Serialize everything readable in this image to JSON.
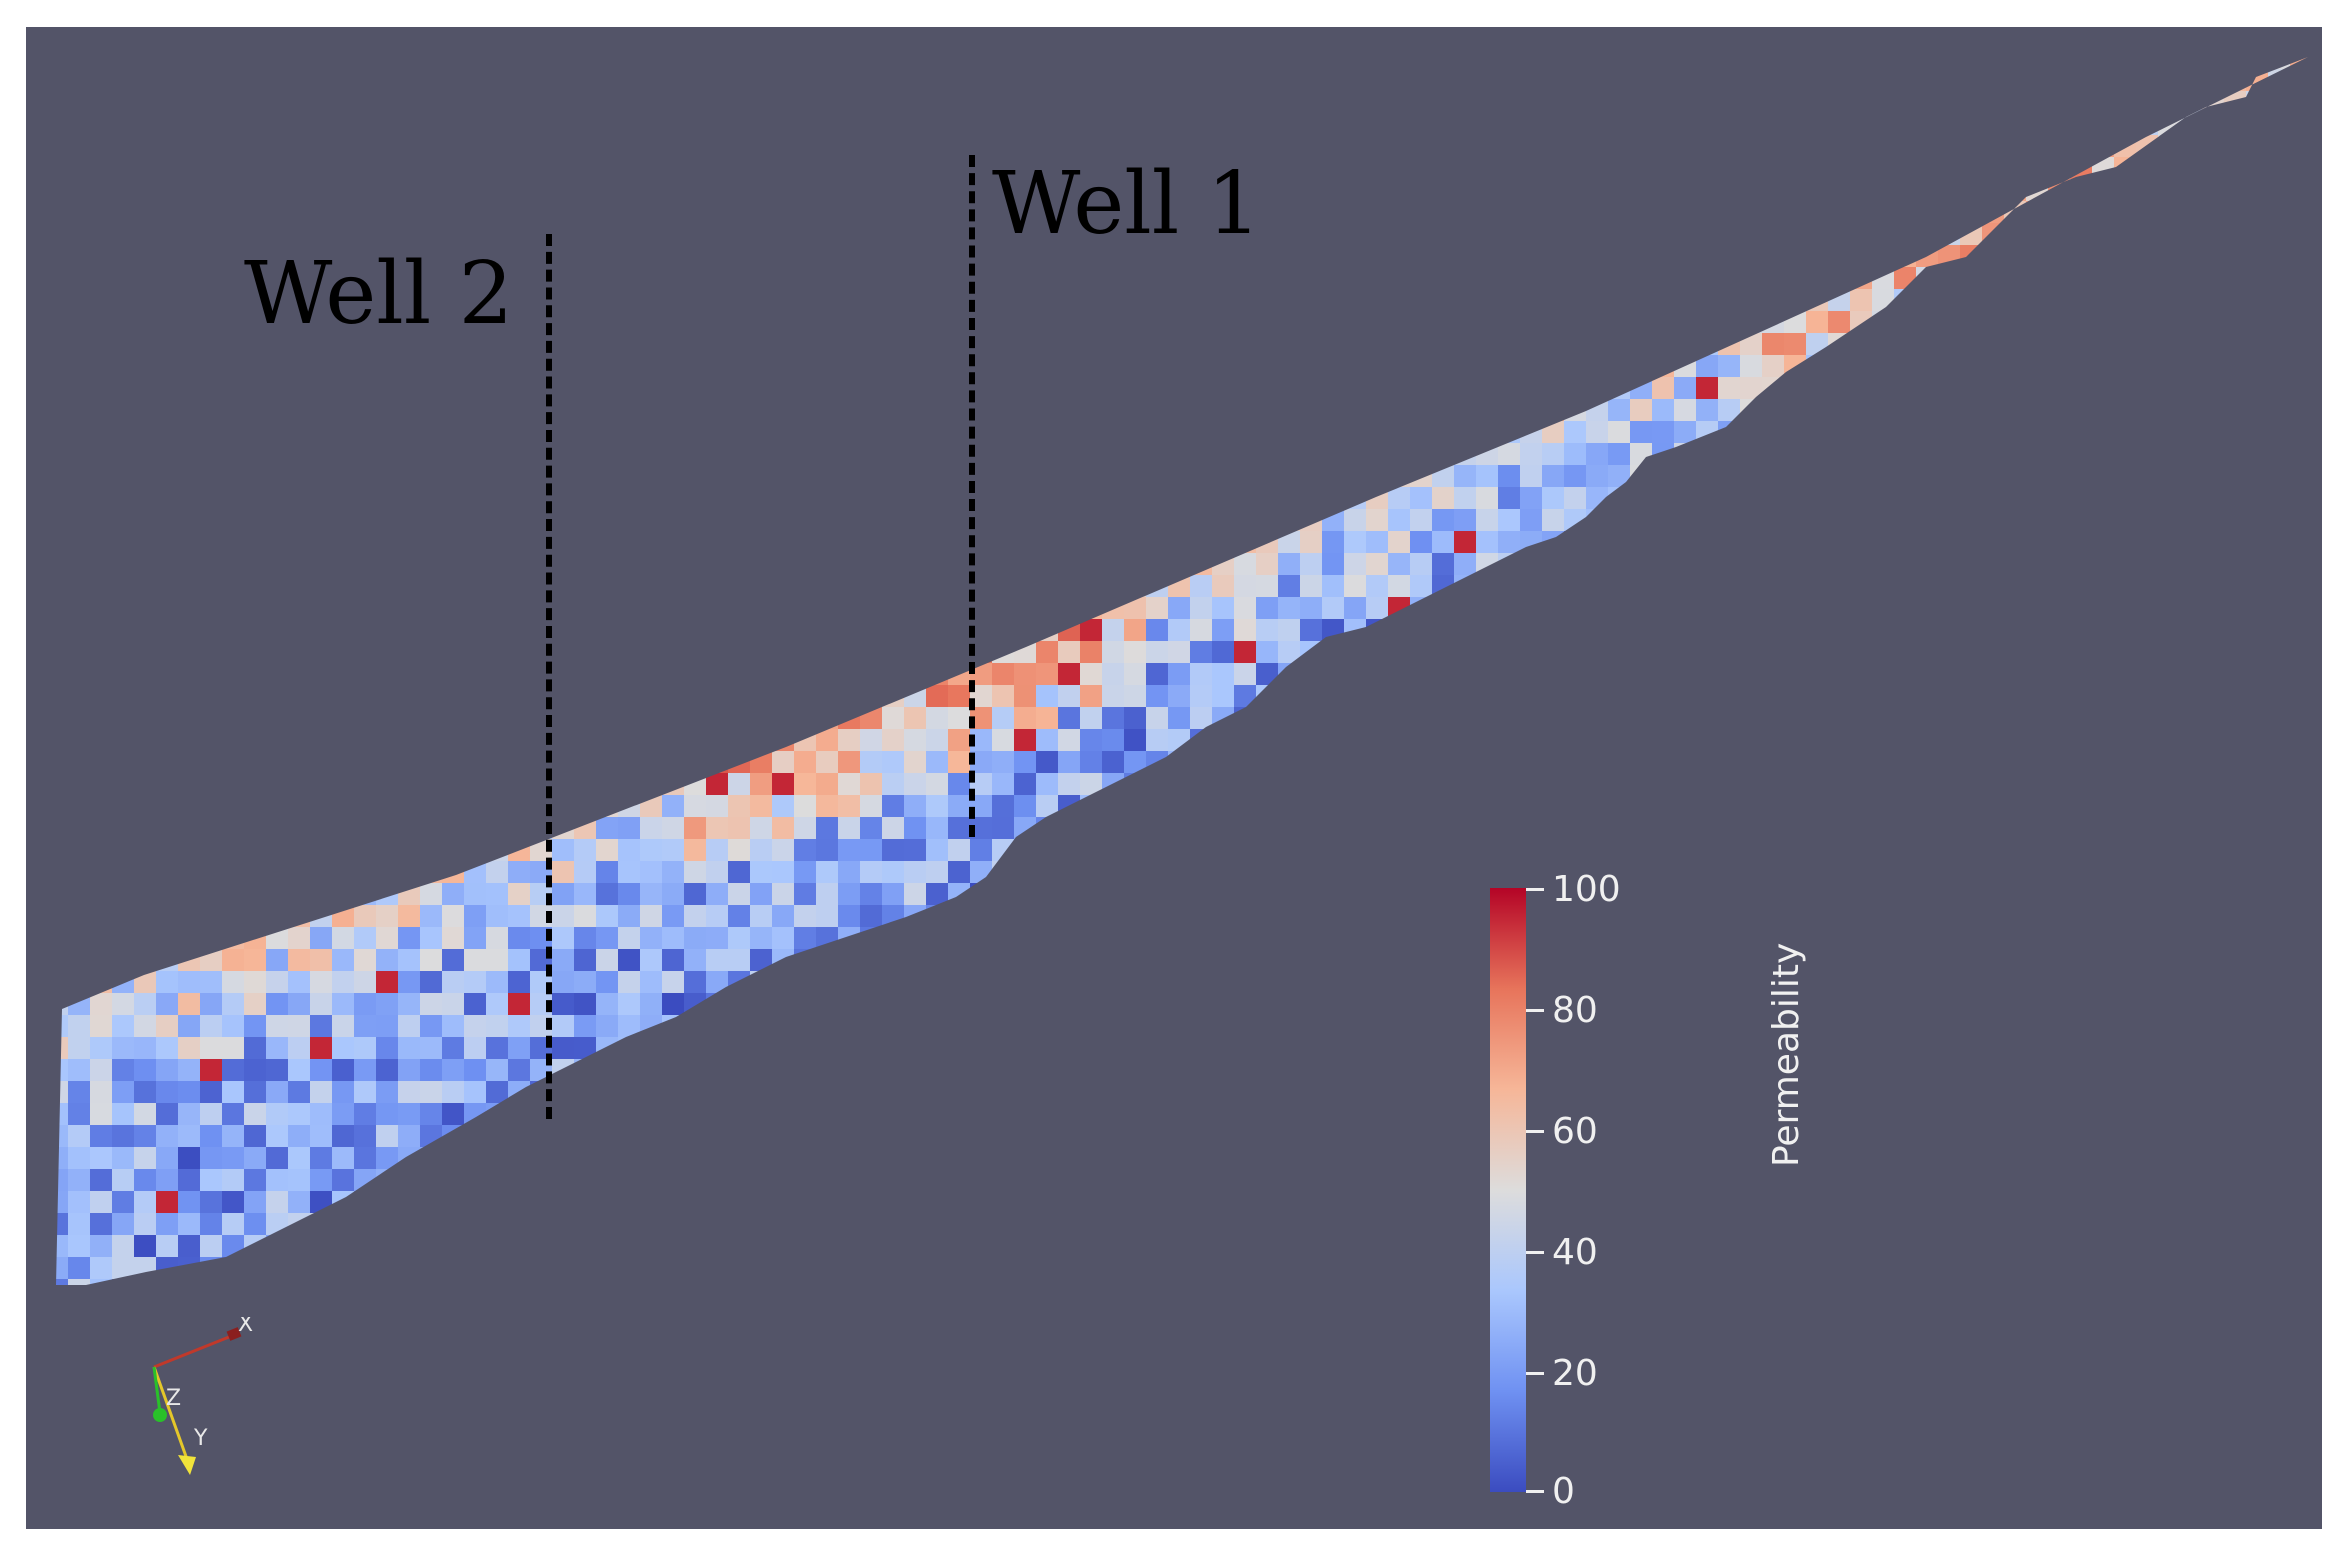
{
  "wells": [
    {
      "label": "Well 1"
    },
    {
      "label": "Well 2"
    }
  ],
  "colorbar": {
    "title": "Permeability",
    "ticks": [
      "100",
      "80",
      "60",
      "40",
      "20",
      "0"
    ],
    "min": 0,
    "max": 100,
    "colormap": [
      "#3b4cc0",
      "#6f91f2",
      "#aac7fd",
      "#dddcdc",
      "#f6b698",
      "#e7745b",
      "#b40426"
    ]
  },
  "axes": {
    "x_label": "X",
    "y_label": "Y",
    "z_label": "Z"
  },
  "colors": {
    "background": "#535468",
    "x_axis": "#c0392b",
    "y_axis": "#f1e33a",
    "z_axis": "#29c129"
  }
}
